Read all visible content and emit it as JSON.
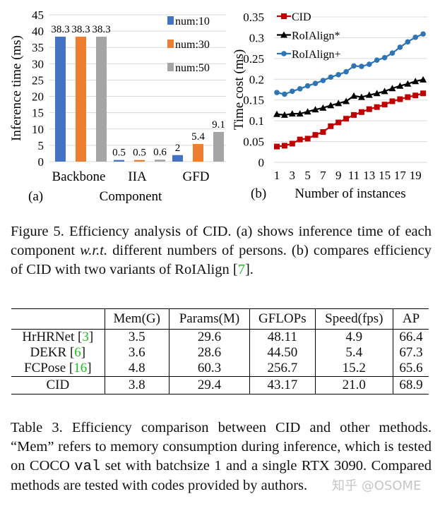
{
  "chart_data": [
    {
      "type": "bar",
      "panel_label": "(a)",
      "categories": [
        "Backbone",
        "IIA",
        "GFD"
      ],
      "xlabel": "Component",
      "ylabel": "Inference time (ms)",
      "ylim": [
        0,
        45
      ],
      "yticks": [
        0,
        5,
        10,
        15,
        20,
        25,
        30,
        35,
        40,
        45
      ],
      "grid": true,
      "legend": "top-right",
      "series": [
        {
          "name": "num:10",
          "color": "#4472c4",
          "values": [
            38.3,
            0.5,
            2
          ]
        },
        {
          "name": "num:30",
          "color": "#ed7d31",
          "values": [
            38.3,
            0.5,
            5.4
          ]
        },
        {
          "name": "num:50",
          "color": "#a5a5a5",
          "values": [
            38.3,
            0.6,
            9.1
          ]
        }
      ]
    },
    {
      "type": "line",
      "panel_label": "(b)",
      "x": [
        1,
        2,
        3,
        4,
        5,
        6,
        7,
        8,
        9,
        10,
        11,
        12,
        13,
        14,
        15,
        16,
        17,
        18,
        19,
        20
      ],
      "xticks": [
        1,
        3,
        5,
        7,
        9,
        11,
        13,
        15,
        17,
        19
      ],
      "xlabel": "Number of instances",
      "ylabel": "Time cost (ms)",
      "ylim": [
        0,
        0.35
      ],
      "yticks": [
        "0",
        "0.05",
        "0.1",
        "0.15",
        "0.2",
        "0.25",
        "0.3",
        "0.35"
      ],
      "grid": true,
      "legend": "top-left",
      "series": [
        {
          "name": "CID",
          "color": "#c00000",
          "marker": "square",
          "values": [
            0.038,
            0.04,
            0.045,
            0.055,
            0.057,
            0.066,
            0.073,
            0.087,
            0.096,
            0.105,
            0.114,
            0.121,
            0.128,
            0.133,
            0.139,
            0.147,
            0.152,
            0.157,
            0.161,
            0.166
          ]
        },
        {
          "name": "RoIAlign*",
          "color": "#000000",
          "marker": "triangle",
          "values": [
            0.116,
            0.114,
            0.117,
            0.117,
            0.122,
            0.127,
            0.131,
            0.137,
            0.142,
            0.147,
            0.16,
            0.157,
            0.162,
            0.166,
            0.171,
            0.178,
            0.184,
            0.189,
            0.195,
            0.199
          ]
        },
        {
          "name": "RoIAlign+",
          "color": "#2e75b6",
          "marker": "circle",
          "values": [
            0.168,
            0.164,
            0.171,
            0.177,
            0.184,
            0.19,
            0.197,
            0.205,
            0.211,
            0.218,
            0.232,
            0.231,
            0.236,
            0.246,
            0.252,
            0.263,
            0.277,
            0.29,
            0.301,
            0.309
          ]
        }
      ]
    }
  ],
  "figure_caption": {
    "part1": "Figure 5. Efficiency analysis of CID. (a) shows inference time of each component ",
    "italic": "w.r.t.",
    "part2": " different numbers of persons. (b) compares efficiency of CID with two variants of RoIAlign [",
    "ref": "7",
    "part3": "]."
  },
  "table": {
    "headers": [
      "",
      "Mem(G)",
      "Params(M)",
      "GFLOPs",
      "Speed(fps)",
      "AP"
    ],
    "rows": [
      {
        "method": "HrHRNet",
        "ref": "3",
        "cells": [
          "3.5",
          "29.6",
          "48.11",
          "4.9",
          "66.4"
        ]
      },
      {
        "method": "DEKR",
        "ref": "6",
        "cells": [
          "3.6",
          "28.6",
          "44.50",
          "5.4",
          "67.3"
        ]
      },
      {
        "method": "FCPose",
        "ref": "16",
        "cells": [
          "4.8",
          "60.3",
          "256.7",
          "15.2",
          "65.6"
        ]
      },
      {
        "method": "CID",
        "ref": "",
        "cells": [
          "3.8",
          "29.4",
          "43.17",
          "21.0",
          "68.9"
        ]
      }
    ]
  },
  "table_caption": {
    "part1": "Table 3. Efficiency comparison between CID and other methods. “Mem” refers to memory consumption during inference, which is tested on COCO ",
    "mono": "val",
    "part2": " set with batchsize 1 and a single RTX 3090. Compared methods are tested with codes provided by authors."
  },
  "watermark": "知乎 @OSOME"
}
